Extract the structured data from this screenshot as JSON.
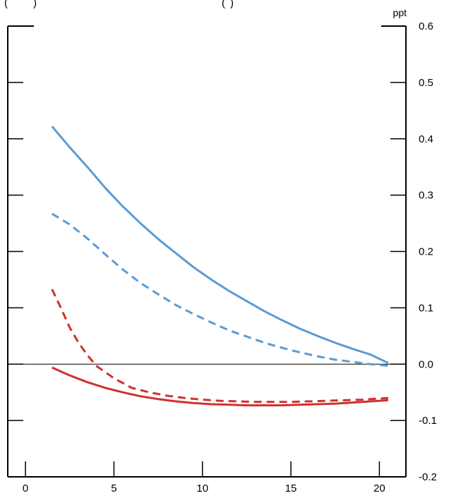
{
  "header_fragments": [
    "(",
    ")",
    "(",
    ")"
  ],
  "chart_data": {
    "type": "line",
    "unit_label": "ppt",
    "xlim": [
      -1,
      21.5
    ],
    "ylim": [
      -0.2,
      0.6
    ],
    "x_ticks": [
      0,
      5,
      10,
      15,
      20
    ],
    "y_ticks": [
      -0.2,
      -0.1,
      0.0,
      0.1,
      0.2,
      0.3,
      0.4,
      0.5,
      0.6
    ],
    "y_tick_labels": [
      "-0.2",
      "-0.1",
      "0.0",
      "0.1",
      "0.2",
      "0.3",
      "0.4",
      "0.5",
      "0.6"
    ],
    "zero_line": true,
    "series": [
      {
        "color": "#5b9bd5",
        "dash": false,
        "x": [
          1.5,
          2.5,
          3.5,
          4.5,
          5.5,
          6.5,
          7.5,
          8.5,
          9.5,
          10.5,
          11.5,
          12.5,
          13.5,
          14.5,
          15.5,
          16.5,
          17.5,
          18.5,
          19.5,
          20.5
        ],
        "y": [
          0.422,
          0.385,
          0.35,
          0.313,
          0.28,
          0.25,
          0.222,
          0.197,
          0.172,
          0.15,
          0.13,
          0.112,
          0.094,
          0.078,
          0.063,
          0.05,
          0.038,
          0.027,
          0.017,
          0.002
        ]
      },
      {
        "color": "#5b9bd5",
        "dash": true,
        "x": [
          1.5,
          2.5,
          3.5,
          4.5,
          5.5,
          6.5,
          7.5,
          8.5,
          9.5,
          10.5,
          11.5,
          12.5,
          13.5,
          14.5,
          15.5,
          16.5,
          17.5,
          18.5,
          19.5,
          20.5
        ],
        "y": [
          0.267,
          0.248,
          0.223,
          0.195,
          0.168,
          0.144,
          0.124,
          0.105,
          0.089,
          0.074,
          0.06,
          0.049,
          0.038,
          0.029,
          0.021,
          0.014,
          0.008,
          0.004,
          0.0,
          -0.003
        ]
      },
      {
        "color": "#d03030",
        "dash": true,
        "x": [
          1.5,
          2.0,
          2.5,
          3.0,
          3.5,
          4.0,
          5.0,
          6.0,
          7.0,
          8.0,
          9.0,
          10.0,
          11.0,
          12.0,
          13.0,
          14.0,
          15.0,
          16.0,
          17.0,
          18.0,
          19.0,
          20.0,
          20.5
        ],
        "y": [
          0.133,
          0.1,
          0.065,
          0.038,
          0.016,
          -0.003,
          -0.025,
          -0.042,
          -0.05,
          -0.056,
          -0.06,
          -0.063,
          -0.065,
          -0.066,
          -0.067,
          -0.067,
          -0.067,
          -0.066,
          -0.065,
          -0.064,
          -0.063,
          -0.061,
          -0.06
        ]
      },
      {
        "color": "#d03030",
        "dash": false,
        "x": [
          1.5,
          2.5,
          3.5,
          4.5,
          5.5,
          6.5,
          7.5,
          8.5,
          9.5,
          10.5,
          11.5,
          12.5,
          13.5,
          14.5,
          15.5,
          16.5,
          17.5,
          18.5,
          19.5,
          20.5
        ],
        "y": [
          -0.006,
          -0.02,
          -0.032,
          -0.042,
          -0.05,
          -0.057,
          -0.062,
          -0.066,
          -0.069,
          -0.071,
          -0.072,
          -0.073,
          -0.073,
          -0.073,
          -0.072,
          -0.071,
          -0.07,
          -0.068,
          -0.066,
          -0.064
        ]
      }
    ]
  }
}
